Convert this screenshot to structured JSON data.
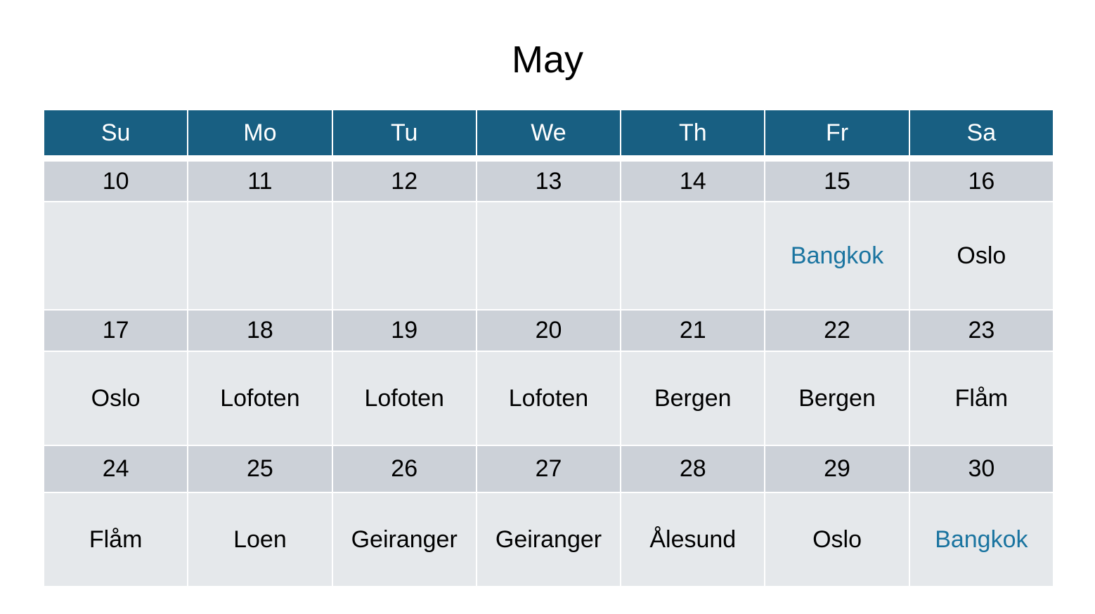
{
  "title": "May",
  "accent_color": "#1a74a0",
  "header_color": "#185f82",
  "days": [
    "Su",
    "Mo",
    "Tu",
    "We",
    "Th",
    "Fr",
    "Sa"
  ],
  "weeks": [
    {
      "dates": [
        "10",
        "11",
        "12",
        "13",
        "14",
        "15",
        "16"
      ],
      "places": [
        "",
        "",
        "",
        "",
        "",
        "Bangkok",
        "Oslo"
      ],
      "highlight": [
        false,
        false,
        false,
        false,
        false,
        true,
        false
      ]
    },
    {
      "dates": [
        "17",
        "18",
        "19",
        "20",
        "21",
        "22",
        "23"
      ],
      "places": [
        "Oslo",
        "Lofoten",
        "Lofoten",
        "Lofoten",
        "Bergen",
        "Bergen",
        "Flåm"
      ],
      "highlight": [
        false,
        false,
        false,
        false,
        false,
        false,
        false
      ]
    },
    {
      "dates": [
        "24",
        "25",
        "26",
        "27",
        "28",
        "29",
        "30"
      ],
      "places": [
        "Flåm",
        "Loen",
        "Geiranger",
        "Geiranger",
        "Ålesund",
        "Oslo",
        "Bangkok"
      ],
      "highlight": [
        false,
        false,
        false,
        false,
        false,
        false,
        true
      ]
    }
  ]
}
